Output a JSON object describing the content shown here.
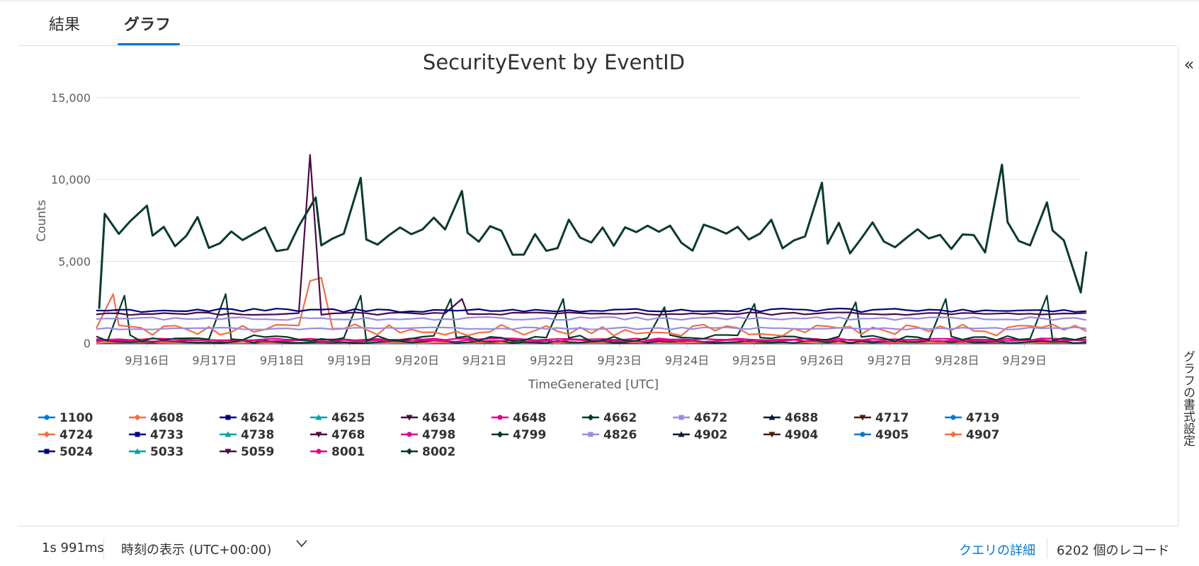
{
  "tabs": [
    {
      "label": "結果"
    },
    {
      "label": "グラフ"
    }
  ],
  "side_panel": {
    "label": "グラフの書式設定"
  },
  "footer": {
    "duration": "1s 991ms",
    "timezone_label": "時刻の表示 (UTC+00:00)",
    "query_details": "クエリの詳細",
    "record_count": "6202 個のレコード"
  },
  "chart_data": {
    "type": "line",
    "title": "SecurityEvent by EventID",
    "xlabel": "TimeGenerated [UTC]",
    "ylabel": "Counts",
    "ylim": [
      0,
      15000
    ],
    "yticks": [
      0,
      5000,
      10000,
      15000
    ],
    "ytick_labels": [
      "0",
      "5,000",
      "10,000",
      "15,000"
    ],
    "x_range": [
      "2023-09-15T06:00",
      "2023-09-29T20:00"
    ],
    "xticks": [
      "9月16日",
      "9月17日",
      "9月18日",
      "9月19日",
      "9月20日",
      "9月21日",
      "9月22日",
      "9月23日",
      "9月24日",
      "9月25日",
      "9月26日",
      "9月27日",
      "9月28日",
      "9月29日"
    ],
    "legend_position": "bottom",
    "series": [
      {
        "name": "1100",
        "color": "#0078d4",
        "marker": "circle",
        "level": 0,
        "var": 0
      },
      {
        "name": "4608",
        "color": "#f46d43",
        "marker": "diamond",
        "level": 20,
        "var": 20
      },
      {
        "name": "4624",
        "color": "#000080",
        "marker": "square",
        "level": 2000,
        "var": 120
      },
      {
        "name": "4625",
        "color": "#00a3a3",
        "marker": "triangle",
        "level": 5,
        "var": 5
      },
      {
        "name": "4634",
        "color": "#4a0a44",
        "marker": "triangle-down",
        "level": 1800,
        "var": 80,
        "spikes": [
          {
            "x": "2023-09-18T10:00",
            "y": 11500
          },
          {
            "x": "2023-09-20T16:00",
            "y": 2700
          }
        ]
      },
      {
        "name": "4648",
        "color": "#e3008c",
        "marker": "circle",
        "level": 230,
        "var": 60
      },
      {
        "name": "4662",
        "color": "#013a26",
        "marker": "diamond",
        "level": 80,
        "var": 80
      },
      {
        "name": "4672",
        "color": "#9a8ddf",
        "marker": "square",
        "level": 1500,
        "var": 90
      },
      {
        "name": "4688",
        "color": "#001b36",
        "marker": "triangle",
        "level": 10,
        "var": 10
      },
      {
        "name": "4717",
        "color": "#4a1d0f",
        "marker": "triangle-down",
        "level": 0,
        "var": 0
      },
      {
        "name": "4719",
        "color": "#0078d4",
        "marker": "circle",
        "level": 0,
        "var": 0
      },
      {
        "name": "4724",
        "color": "#f46d43",
        "marker": "diamond",
        "level": 0,
        "var": 0
      },
      {
        "name": "4733",
        "color": "#000080",
        "marker": "square",
        "level": 0,
        "var": 0
      },
      {
        "name": "4738",
        "color": "#00a3a3",
        "marker": "triangle",
        "level": 0,
        "var": 0
      },
      {
        "name": "4768",
        "color": "#4a0a44",
        "marker": "triangle-down",
        "level": 0,
        "var": 0
      },
      {
        "name": "4798",
        "color": "#e3008c",
        "marker": "circle",
        "level": 0,
        "var": 0
      },
      {
        "name": "4799",
        "color": "#013a26",
        "marker": "diamond",
        "level": 300,
        "var": 200,
        "spikes": [
          {
            "x": "2023-09-15T16:00",
            "y": 2900
          },
          {
            "x": "2023-09-17T04:00",
            "y": 3000
          },
          {
            "x": "2023-09-19T04:00",
            "y": 2900
          },
          {
            "x": "2023-09-20T12:00",
            "y": 2700
          },
          {
            "x": "2023-09-22T04:00",
            "y": 2700
          },
          {
            "x": "2023-09-23T16:00",
            "y": 2200
          },
          {
            "x": "2023-09-25T00:00",
            "y": 2400
          },
          {
            "x": "2023-09-26T12:00",
            "y": 2500
          },
          {
            "x": "2023-09-27T20:00",
            "y": 2700
          },
          {
            "x": "2023-09-29T08:00",
            "y": 2900
          }
        ]
      },
      {
        "name": "4826",
        "color": "#9a8ddf",
        "marker": "square",
        "level": 900,
        "var": 70
      },
      {
        "name": "4902",
        "color": "#001b36",
        "marker": "triangle",
        "level": 0,
        "var": 0
      },
      {
        "name": "4904",
        "color": "#4a1d0f",
        "marker": "triangle-down",
        "level": 0,
        "var": 0
      },
      {
        "name": "4905",
        "color": "#0078d4",
        "marker": "circle",
        "level": 0,
        "var": 0
      },
      {
        "name": "4907",
        "color": "#f46d43",
        "marker": "diamond",
        "level": 800,
        "var": 350,
        "spikes": [
          {
            "x": "2023-09-15T12:00",
            "y": 3000
          },
          {
            "x": "2023-09-18T10:00",
            "y": 3800
          },
          {
            "x": "2023-09-18T14:00",
            "y": 4000
          }
        ]
      },
      {
        "name": "5024",
        "color": "#000080",
        "marker": "square",
        "level": 0,
        "var": 0
      },
      {
        "name": "5033",
        "color": "#00a3a3",
        "marker": "triangle",
        "level": 0,
        "var": 0
      },
      {
        "name": "5059",
        "color": "#4a0a44",
        "marker": "triangle-down",
        "level": 0,
        "var": 0
      },
      {
        "name": "8001",
        "color": "#e3008c",
        "marker": "circle",
        "level": 150,
        "var": 60
      },
      {
        "name": "8002",
        "color": "#0b3a2e",
        "marker": "diamond",
        "level": 6300,
        "var": 900,
        "spikes": [
          {
            "x": "2023-09-15T07:00",
            "y": 2100
          },
          {
            "x": "2023-09-15T09:00",
            "y": 7900
          },
          {
            "x": "2023-09-16T00:00",
            "y": 8400
          },
          {
            "x": "2023-09-18T12:00",
            "y": 8900
          },
          {
            "x": "2023-09-19T04:00",
            "y": 10100
          },
          {
            "x": "2023-09-20T16:00",
            "y": 9300
          },
          {
            "x": "2023-09-26T00:00",
            "y": 9800
          },
          {
            "x": "2023-09-28T16:00",
            "y": 10900
          },
          {
            "x": "2023-09-29T08:00",
            "y": 8600
          },
          {
            "x": "2023-09-29T20:00",
            "y": 3100
          }
        ]
      }
    ]
  }
}
